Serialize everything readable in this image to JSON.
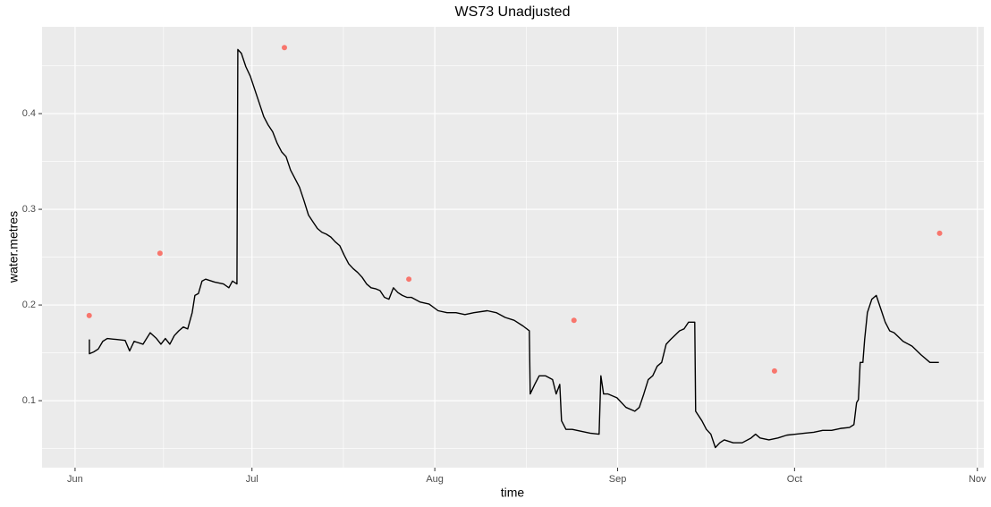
{
  "chart_data": {
    "type": "line",
    "title": "WS73 Unadjusted",
    "x_label": "time",
    "y_label": "water.metres",
    "xlim": [
      -5.6,
      154.1
    ],
    "ylim": [
      0.03,
      0.4907
    ],
    "xticks": [
      {
        "value": 0,
        "label": "Jun"
      },
      {
        "value": 30,
        "label": "Jul"
      },
      {
        "value": 61,
        "label": "Aug"
      },
      {
        "value": 92,
        "label": "Sep"
      },
      {
        "value": 122,
        "label": "Oct"
      },
      {
        "value": 153,
        "label": "Nov"
      }
    ],
    "yticks": [
      0.1,
      0.2,
      0.3,
      0.4
    ],
    "grid": true,
    "background": "#EBEBEB",
    "series": [
      {
        "type": "line",
        "color": "#000000",
        "x": [
          2.43,
          2.43,
          3.18,
          3.94,
          4.7,
          5.46,
          6.97,
          8.49,
          9.25,
          10.01,
          11.52,
          12.74,
          13.8,
          14.56,
          15.31,
          16.07,
          16.83,
          17.59,
          18.35,
          19.1,
          19.86,
          20.32,
          20.92,
          21.53,
          22.14,
          23.65,
          25.17,
          26.08,
          26.69,
          27.45,
          27.6,
          28.2,
          28.96,
          29.72,
          30.48,
          31.24,
          31.99,
          32.75,
          33.51,
          34.27,
          35.03,
          35.78,
          36.54,
          37.3,
          38.06,
          38.82,
          39.58,
          40.33,
          41.09,
          41.85,
          42.61,
          43.37,
          44.12,
          44.88,
          45.64,
          46.4,
          47.16,
          47.92,
          48.67,
          49.43,
          50.19,
          50.95,
          51.71,
          52.46,
          53.22,
          53.98,
          54.74,
          55.5,
          56.26,
          57.01,
          58.53,
          60.04,
          61.56,
          63.08,
          64.59,
          66.11,
          67.63,
          69.9,
          71.42,
          72.93,
          74.45,
          75.97,
          77.03,
          77.18,
          77.94,
          78.7,
          79.76,
          80.97,
          81.58,
          82.19,
          82.49,
          83.24,
          84.31,
          85.82,
          87.34,
          88.86,
          89.16,
          89.62,
          90.37,
          91.89,
          93.41,
          94.92,
          95.68,
          96.44,
          97.19,
          97.95,
          98.71,
          99.47,
          100.23,
          100.99,
          102.5,
          103.26,
          104.02,
          105.08,
          105.23,
          106.29,
          107.05,
          107.81,
          108.57,
          109.33,
          110.08,
          111.6,
          113.12,
          114.63,
          115.39,
          116.15,
          117.66,
          119.18,
          120.7,
          122.21,
          123.73,
          125.25,
          126.77,
          128.28,
          129.8,
          131.31,
          132.07,
          132.52,
          132.83,
          133.13,
          133.59,
          133.89,
          134.35,
          135.1,
          135.86,
          136.62,
          137.38,
          138.13,
          138.89,
          140.41,
          141.93,
          143.44,
          144.96,
          145.72,
          146.47
        ],
        "values": [
          0.164,
          0.149,
          0.151,
          0.154,
          0.162,
          0.165,
          0.164,
          0.163,
          0.152,
          0.162,
          0.159,
          0.171,
          0.165,
          0.159,
          0.165,
          0.159,
          0.168,
          0.173,
          0.177,
          0.175,
          0.192,
          0.21,
          0.212,
          0.225,
          0.227,
          0.224,
          0.222,
          0.218,
          0.225,
          0.222,
          0.467,
          0.463,
          0.449,
          0.439,
          0.425,
          0.411,
          0.397,
          0.388,
          0.381,
          0.369,
          0.36,
          0.355,
          0.341,
          0.332,
          0.323,
          0.309,
          0.294,
          0.287,
          0.28,
          0.276,
          0.274,
          0.271,
          0.266,
          0.262,
          0.252,
          0.243,
          0.238,
          0.234,
          0.229,
          0.222,
          0.218,
          0.217,
          0.215,
          0.208,
          0.206,
          0.218,
          0.213,
          0.21,
          0.208,
          0.208,
          0.203,
          0.201,
          0.194,
          0.192,
          0.192,
          0.19,
          0.192,
          0.194,
          0.192,
          0.187,
          0.184,
          0.178,
          0.173,
          0.107,
          0.117,
          0.126,
          0.126,
          0.122,
          0.107,
          0.117,
          0.079,
          0.07,
          0.07,
          0.068,
          0.066,
          0.065,
          0.126,
          0.107,
          0.107,
          0.103,
          0.093,
          0.089,
          0.093,
          0.107,
          0.122,
          0.126,
          0.136,
          0.14,
          0.159,
          0.164,
          0.173,
          0.175,
          0.182,
          0.182,
          0.089,
          0.079,
          0.07,
          0.065,
          0.051,
          0.056,
          0.059,
          0.056,
          0.056,
          0.061,
          0.065,
          0.061,
          0.059,
          0.061,
          0.064,
          0.065,
          0.066,
          0.067,
          0.069,
          0.069,
          0.071,
          0.072,
          0.075,
          0.098,
          0.101,
          0.14,
          0.14,
          0.164,
          0.192,
          0.206,
          0.21,
          0.196,
          0.182,
          0.173,
          0.171,
          0.162,
          0.157,
          0.148,
          0.14,
          0.14,
          0.14
        ]
      },
      {
        "type": "scatter",
        "color": "#F8766D",
        "x": [
          2.4,
          14.4,
          35.5,
          56.6,
          84.6,
          118.6,
          146.6
        ],
        "values": [
          0.189,
          0.254,
          0.469,
          0.227,
          0.184,
          0.131,
          0.275
        ]
      }
    ]
  }
}
